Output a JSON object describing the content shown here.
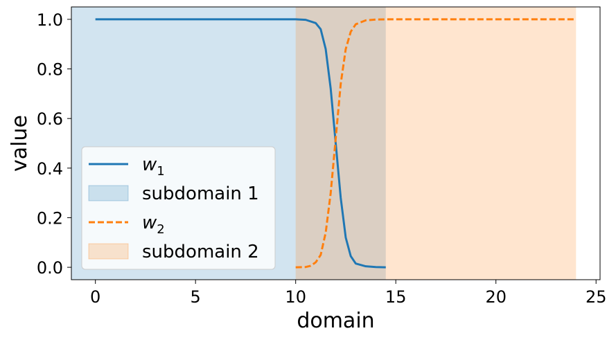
{
  "chart_data": {
    "type": "line",
    "title": "",
    "xlabel": "domain",
    "ylabel": "value",
    "xlim": [
      -1.2,
      25.2
    ],
    "ylim": [
      -0.05,
      1.05
    ],
    "x_ticks": [
      0,
      5,
      10,
      15,
      20,
      25
    ],
    "x_tick_labels": [
      "0",
      "5",
      "10",
      "15",
      "20",
      "25"
    ],
    "y_ticks": [
      0.0,
      0.2,
      0.4,
      0.6,
      0.8,
      1.0
    ],
    "y_tick_labels": [
      "0.0",
      "0.2",
      "0.4",
      "0.6",
      "0.8",
      "1.0"
    ],
    "grid": false,
    "legend_position": "lower-left",
    "series": [
      {
        "name": "w1",
        "label_base": "w",
        "label_sub": "1",
        "color": "#1f77b4",
        "style": "solid",
        "x": [
          0,
          1,
          2,
          3,
          4,
          5,
          6,
          7,
          8,
          9,
          10,
          10.5,
          11,
          11.25,
          11.5,
          11.75,
          12,
          12.25,
          12.5,
          12.75,
          13,
          13.5,
          14,
          14.5
        ],
        "y": [
          1.0,
          1.0,
          1.0,
          1.0,
          1.0,
          1.0,
          1.0,
          1.0,
          1.0,
          1.0,
          1.0,
          0.998,
          0.985,
          0.96,
          0.88,
          0.72,
          0.5,
          0.28,
          0.12,
          0.045,
          0.015,
          0.004,
          0.001,
          0.0
        ]
      },
      {
        "name": "w2",
        "label_base": "w",
        "label_sub": "2",
        "color": "#ff7f0e",
        "style": "dashed",
        "x": [
          10,
          10.5,
          10.75,
          11,
          11.25,
          11.5,
          11.75,
          12,
          12.25,
          12.5,
          12.75,
          13,
          13.5,
          14,
          14.5,
          15,
          16,
          18,
          20,
          22,
          24
        ],
        "y": [
          0.0,
          0.001,
          0.006,
          0.02,
          0.05,
          0.14,
          0.3,
          0.52,
          0.74,
          0.88,
          0.95,
          0.98,
          0.996,
          0.999,
          1.0,
          1.0,
          1.0,
          1.0,
          1.0,
          1.0,
          1.0
        ]
      }
    ],
    "regions": [
      {
        "name": "subdomain 1",
        "x_start": -1.2,
        "x_end": 14.5,
        "color": "#1f77b4",
        "opacity": 0.2
      },
      {
        "name": "subdomain 2",
        "x_start": 10,
        "x_end": 24,
        "color": "#ff7f0e",
        "opacity": 0.2
      }
    ],
    "legend": [
      {
        "kind": "line",
        "series": 0,
        "text": "w",
        "sub": "1"
      },
      {
        "kind": "patch",
        "region": 0,
        "text": "subdomain 1"
      },
      {
        "kind": "line",
        "series": 1,
        "text": "w",
        "sub": "2"
      },
      {
        "kind": "patch",
        "region": 1,
        "text": "subdomain 2"
      }
    ]
  }
}
